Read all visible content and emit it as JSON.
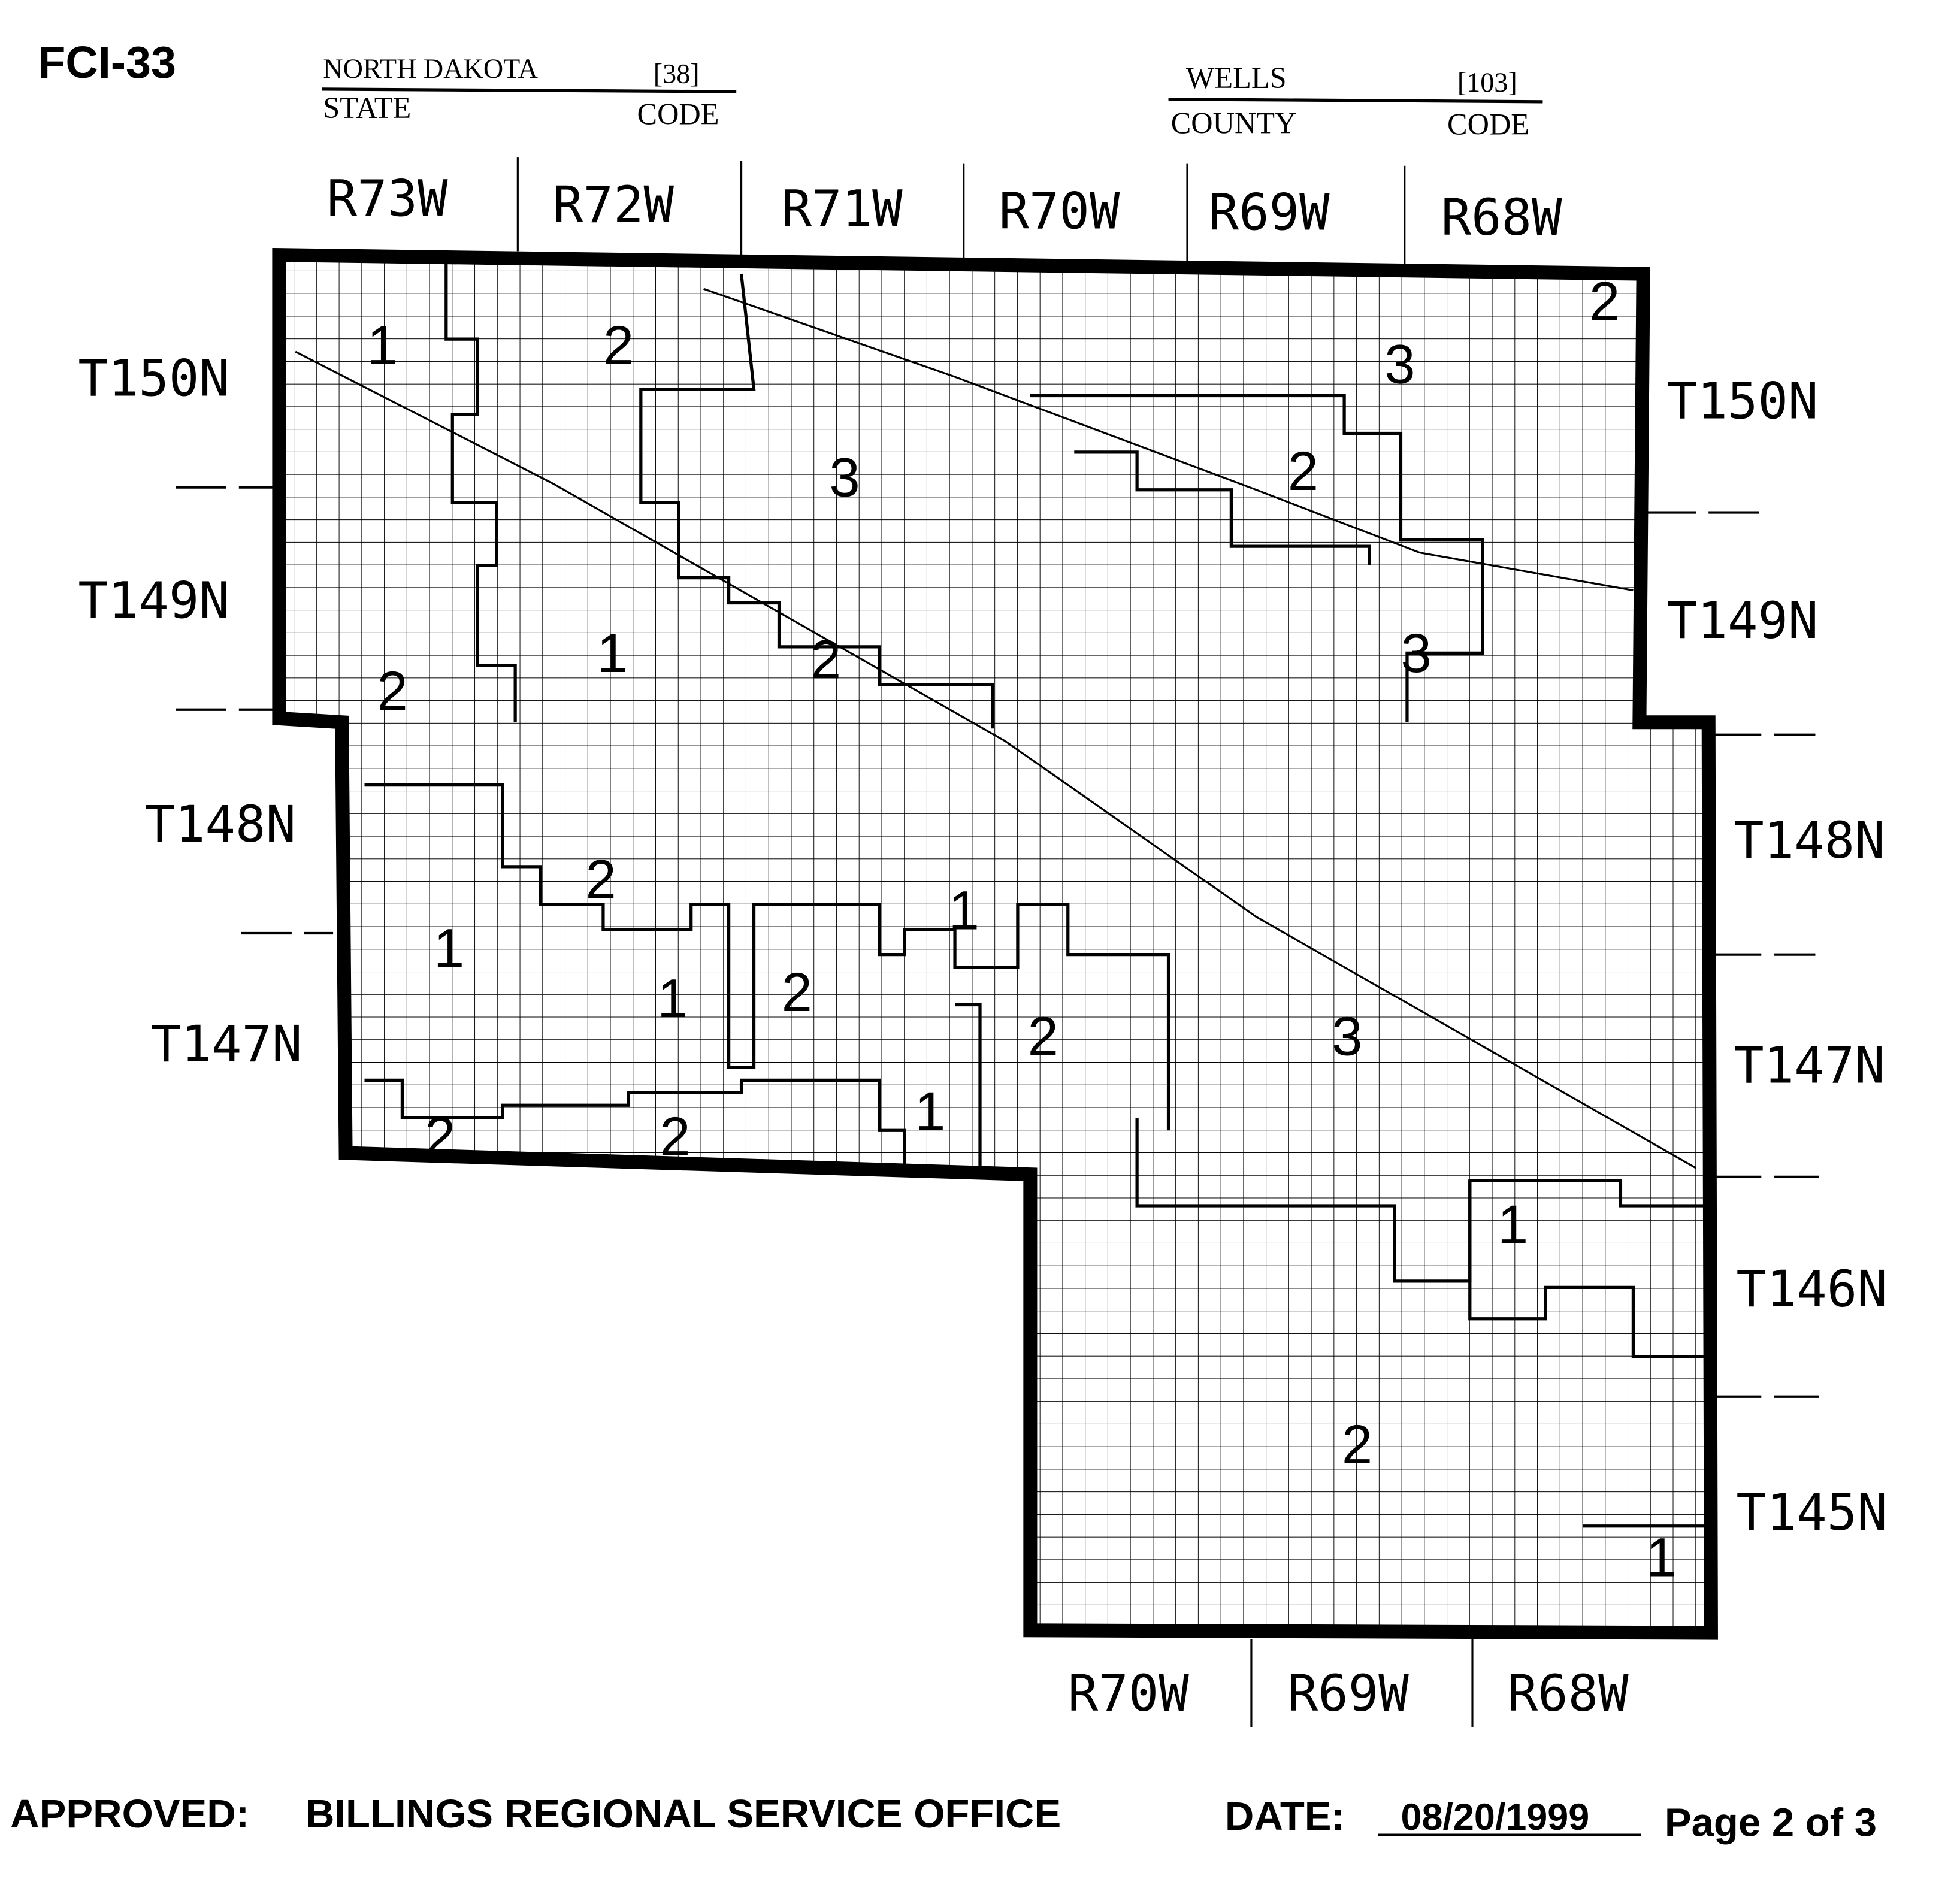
{
  "form_id": "FCI-33",
  "state": {
    "name": "NORTH DAKOTA",
    "code": "[38]",
    "name_label": "STATE",
    "code_label": "CODE"
  },
  "county": {
    "name": "WELLS",
    "code": "[103]",
    "name_label": "COUNTY",
    "code_label": "CODE"
  },
  "ranges_top": [
    "R73W",
    "R72W",
    "R71W",
    "R70W",
    "R69W",
    "R68W"
  ],
  "ranges_bottom": [
    "R70W",
    "R69W",
    "R68W"
  ],
  "townships_left": [
    "T150N",
    "T149N",
    "T148N",
    "T147N"
  ],
  "townships_right": [
    "T150N",
    "T149N",
    "T148N",
    "T147N",
    "T146N",
    "T145N"
  ],
  "zones": [
    "1",
    "2",
    "3",
    "2",
    "3",
    "2",
    "1",
    "2",
    "3",
    "2",
    "2",
    "1",
    "1",
    "1",
    "2",
    "2",
    "3",
    "1",
    "2",
    "2",
    "1",
    "2",
    "1"
  ],
  "footer": {
    "approved_label": "APPROVED:",
    "office": "BILLINGS REGIONAL SERVICE OFFICE",
    "date_label": "DATE:",
    "date": "08/20/1999",
    "page": "Page 2 of 3"
  }
}
